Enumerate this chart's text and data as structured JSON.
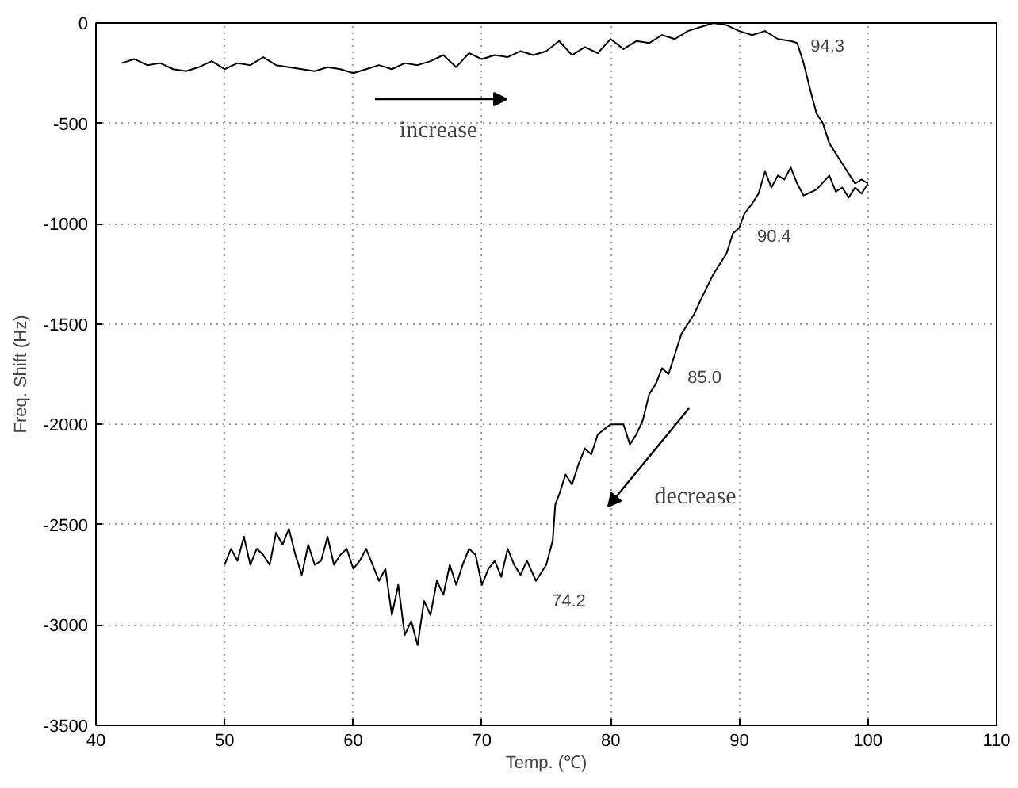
{
  "chart_data": {
    "type": "line",
    "xlabel": "Temp. (℃)",
    "ylabel": "Freq. Shift (Hz)",
    "xlim": [
      40,
      110
    ],
    "ylim": [
      -3500,
      0
    ],
    "xticks": [
      40,
      50,
      60,
      70,
      80,
      90,
      100,
      110
    ],
    "yticks": [
      -3500,
      -3000,
      -2500,
      -2000,
      -1500,
      -1000,
      -500,
      0
    ],
    "grid": true,
    "marker": "none",
    "line_style": "solid",
    "series": [
      {
        "color": "#000000",
        "x": [
          42,
          43,
          44,
          45,
          46,
          47,
          48,
          49,
          50,
          51,
          52,
          53,
          54,
          55,
          56,
          57,
          58,
          59,
          60,
          61,
          62,
          63,
          64,
          65,
          66,
          67,
          68,
          69,
          70,
          71,
          72,
          73,
          74,
          75,
          76,
          77,
          78,
          79,
          80,
          81,
          82,
          83,
          84,
          85,
          86,
          87,
          88,
          89,
          90,
          91,
          92,
          93,
          94,
          94.5,
          95,
          95.5,
          96,
          96.5,
          97,
          97.5,
          98,
          98.5,
          99,
          99.5,
          100
        ],
        "values": [
          -200,
          -180,
          -210,
          -200,
          -230,
          -240,
          -220,
          -190,
          -230,
          -200,
          -210,
          -170,
          -210,
          -220,
          -230,
          -240,
          -220,
          -230,
          -250,
          -230,
          -210,
          -230,
          -200,
          -210,
          -190,
          -160,
          -220,
          -150,
          -180,
          -160,
          -170,
          -140,
          -160,
          -140,
          -90,
          -160,
          -120,
          -150,
          -80,
          -130,
          -90,
          -100,
          -60,
          -80,
          -40,
          -20,
          0,
          -10,
          -40,
          -60,
          -40,
          -80,
          -90,
          -100,
          -200,
          -330,
          -450,
          -500,
          -600,
          -650,
          -700,
          -750,
          -800,
          -780,
          -800
        ]
      },
      {
        "color": "#000000",
        "x": [
          100,
          99.5,
          99,
          98.5,
          98,
          97.5,
          97,
          96,
          95,
          94.5,
          94,
          93.5,
          93,
          92.5,
          92,
          91.5,
          91,
          90.4,
          90,
          89.5,
          89,
          88.5,
          88,
          87,
          86.5,
          86,
          85.5,
          85,
          84.5,
          84,
          83.5,
          83,
          82.5,
          82,
          81.5,
          81,
          80,
          79,
          78.5,
          78,
          77.5,
          77,
          76.5,
          76,
          75.7,
          75.5,
          75,
          74.2,
          73.5,
          73,
          72.5,
          72,
          71.5,
          71,
          70.5,
          70,
          69.5,
          69,
          68.5,
          68,
          67.5,
          67,
          66.5,
          66,
          65.5,
          65,
          64.5,
          64,
          63.5,
          63,
          62.5,
          62,
          61.5,
          61,
          60.5,
          60,
          59.5,
          59,
          58.5,
          58,
          57.5,
          57,
          56.5,
          56,
          55.5,
          55,
          54.5,
          54,
          53.5,
          53,
          52.5,
          52,
          51.5,
          51,
          50.5,
          50
        ],
        "values": [
          -800,
          -850,
          -820,
          -870,
          -820,
          -840,
          -760,
          -830,
          -860,
          -800,
          -720,
          -780,
          -760,
          -820,
          -740,
          -850,
          -900,
          -950,
          -1020,
          -1050,
          -1150,
          -1200,
          -1250,
          -1380,
          -1450,
          -1500,
          -1550,
          -1650,
          -1750,
          -1720,
          -1800,
          -1850,
          -1980,
          -2050,
          -2100,
          -2000,
          -2000,
          -2050,
          -2150,
          -2120,
          -2200,
          -2300,
          -2250,
          -2350,
          -2400,
          -2580,
          -2700,
          -2780,
          -2680,
          -2750,
          -2700,
          -2620,
          -2760,
          -2680,
          -2720,
          -2800,
          -2650,
          -2620,
          -2700,
          -2800,
          -2700,
          -2850,
          -2780,
          -2950,
          -2880,
          -3100,
          -2980,
          -3050,
          -2800,
          -2950,
          -2720,
          -2780,
          -2700,
          -2620,
          -2680,
          -2720,
          -2620,
          -2650,
          -2700,
          -2560,
          -2680,
          -2700,
          -2600,
          -2750,
          -2650,
          -2520,
          -2600,
          -2540,
          -2700,
          -2650,
          -2620,
          -2700,
          -2560,
          -2680,
          -2620,
          -2700
        ]
      }
    ],
    "annotations": [
      {
        "text": "94.3",
        "x": 94.3,
        "y": -80
      },
      {
        "text": "90.4",
        "x": 90.4,
        "y": -950
      },
      {
        "text": "85.0",
        "x": 85,
        "y": -1650
      },
      {
        "text": "74.2",
        "x": 74.2,
        "y": -2780
      },
      "increase",
      "decrease"
    ]
  }
}
